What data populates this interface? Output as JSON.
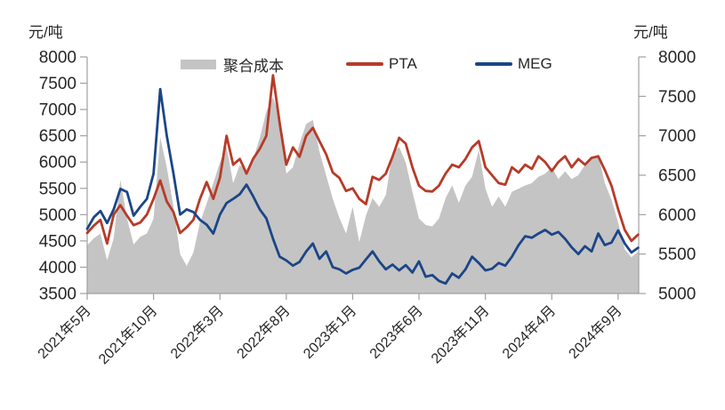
{
  "chart_data": {
    "type": "combo",
    "x_start": "2021年5月",
    "x_end": "2024年10月",
    "x_step_months": 0.5,
    "x_tick_labels": [
      "2021年5月",
      "2021年10月",
      "2022年3月",
      "2022年8月",
      "2023年1月",
      "2023年6月",
      "2023年11月",
      "2024年4月",
      "2024年9月"
    ],
    "left_axis": {
      "unit": "元/吨",
      "min": 3500,
      "max": 8000,
      "step": 500,
      "ticks": [
        "8000",
        "7500",
        "7000",
        "6500",
        "6000",
        "5500",
        "5000",
        "4500",
        "4000",
        "3500"
      ]
    },
    "right_axis": {
      "unit": "元/吨",
      "min": 5000,
      "max": 8000,
      "step": 500,
      "ticks": [
        "8000",
        "7500",
        "7000",
        "6500",
        "6000",
        "5500",
        "5000"
      ]
    },
    "grid": false,
    "legend_position": "top",
    "series": [
      {
        "name": "聚合成本",
        "type": "area",
        "axis": "right",
        "color": "#c4c4c4",
        "values": [
          5610,
          5700,
          5760,
          5420,
          5700,
          6440,
          5950,
          5620,
          5720,
          5760,
          5950,
          6980,
          6600,
          6100,
          5500,
          5350,
          5520,
          5900,
          6140,
          6400,
          6660,
          6860,
          6400,
          6630,
          6550,
          6700,
          6970,
          7310,
          7490,
          7230,
          6520,
          6600,
          6900,
          7150,
          7200,
          6800,
          6500,
          6200,
          5960,
          5760,
          6100,
          5650,
          5990,
          6210,
          6100,
          6250,
          6780,
          6860,
          6660,
          6290,
          5950,
          5870,
          5850,
          5950,
          6210,
          6370,
          6150,
          6370,
          6480,
          6820,
          6330,
          6100,
          6230,
          6100,
          6290,
          6330,
          6370,
          6400,
          6480,
          6520,
          6600,
          6450,
          6550,
          6450,
          6500,
          6630,
          6700,
          6760,
          6400,
          6190,
          5900,
          5560,
          5460,
          5530
        ]
      },
      {
        "name": "PTA",
        "type": "line",
        "axis": "left",
        "color": "#b73b28",
        "values": [
          4650,
          4790,
          4900,
          4450,
          5000,
          5180,
          4980,
          4800,
          4850,
          5000,
          5300,
          5650,
          5250,
          5050,
          4650,
          4760,
          4900,
          5300,
          5620,
          5300,
          5700,
          6500,
          5950,
          6060,
          5780,
          6060,
          6250,
          6500,
          7650,
          6740,
          5950,
          6280,
          6100,
          6500,
          6650,
          6400,
          6150,
          5800,
          5700,
          5450,
          5500,
          5300,
          5200,
          5720,
          5660,
          5780,
          6100,
          6460,
          6350,
          5900,
          5550,
          5450,
          5440,
          5550,
          5780,
          5950,
          5900,
          6060,
          6280,
          6400,
          5900,
          5750,
          5600,
          5570,
          5900,
          5800,
          5950,
          5870,
          6110,
          6000,
          5830,
          6000,
          6110,
          5900,
          6060,
          5950,
          6080,
          6110,
          5850,
          5550,
          5100,
          4710,
          4500,
          4620
        ]
      },
      {
        "name": "MEG",
        "type": "line",
        "axis": "left",
        "color": "#1c4587",
        "values": [
          4730,
          4950,
          5070,
          4840,
          5100,
          5490,
          5430,
          4980,
          5150,
          5300,
          5780,
          7390,
          6500,
          5780,
          5000,
          5100,
          5050,
          4900,
          4810,
          4640,
          5000,
          5220,
          5300,
          5390,
          5570,
          5350,
          5100,
          4930,
          4540,
          4200,
          4130,
          4030,
          4100,
          4300,
          4450,
          4160,
          4300,
          4000,
          3960,
          3880,
          3950,
          3990,
          4150,
          4300,
          4110,
          3960,
          4050,
          3940,
          4040,
          3900,
          4110,
          3820,
          3850,
          3740,
          3690,
          3880,
          3800,
          3960,
          4200,
          4080,
          3940,
          3970,
          4080,
          4030,
          4200,
          4420,
          4590,
          4560,
          4640,
          4710,
          4620,
          4670,
          4540,
          4380,
          4250,
          4400,
          4300,
          4640,
          4420,
          4470,
          4700,
          4450,
          4280,
          4370
        ]
      }
    ]
  },
  "style_tokens": {
    "axis_color": "#a0a0a0",
    "text_color": "#262626",
    "background": "#ffffff"
  }
}
